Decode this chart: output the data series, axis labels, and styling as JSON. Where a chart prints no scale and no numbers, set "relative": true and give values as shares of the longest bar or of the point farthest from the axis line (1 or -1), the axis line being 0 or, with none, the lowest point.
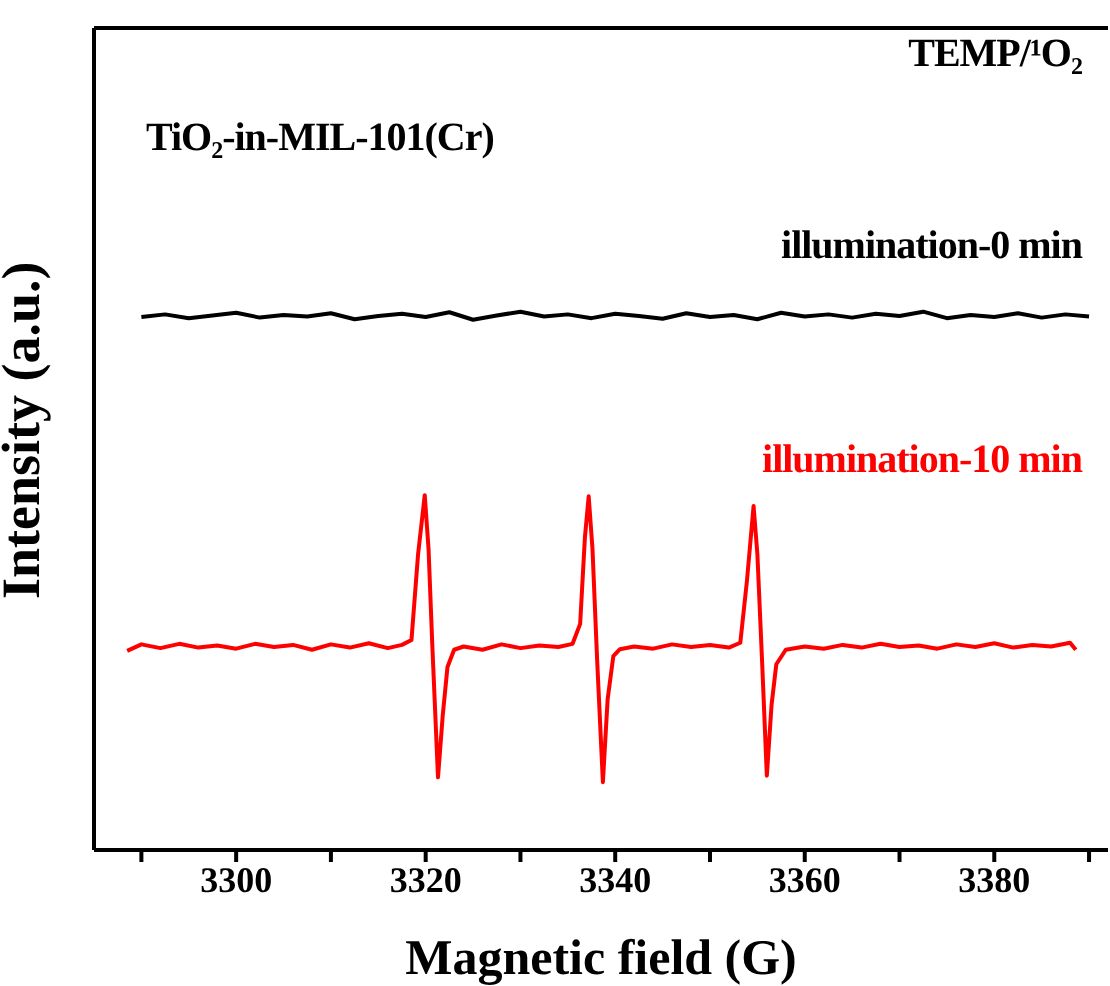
{
  "chart_data": {
    "type": "line",
    "relative": true,
    "xlabel": "Magnetic field (G)",
    "ylabel": "Intensity (a.u.)",
    "annotations": [
      "TEMP/¹O₂",
      "TiO₂-in-MIL-101(Cr)"
    ],
    "xlim": [
      3285,
      3392
    ],
    "xticks": [
      {
        "value": 3290,
        "label": null
      },
      3300,
      {
        "value": 3310,
        "label": null
      },
      3320,
      {
        "value": 3330,
        "label": null
      },
      3340,
      {
        "value": 3350,
        "label": null
      },
      3360,
      {
        "value": 3370,
        "label": null
      },
      3380,
      {
        "value": 3390,
        "label": null
      }
    ],
    "x": [
      3290,
      3292.5,
      3295,
      3297.5,
      3300,
      3302.5,
      3305,
      3307.5,
      3310,
      3312.5,
      3315,
      3317.5,
      3320,
      3322.5,
      3325,
      3327.5,
      3330,
      3332.5,
      3335,
      3337.5,
      3340,
      3342.5,
      3345,
      3347.5,
      3350,
      3352.5,
      3355,
      3357.5,
      3360,
      3362.5,
      3365,
      3367.5,
      3370,
      3372.5,
      3375,
      3377.5,
      3380,
      3382.5,
      3385,
      3387.5,
      3390
    ],
    "series": [
      {
        "name": "illumination-0 min",
        "color": "#000000",
        "values": [
          0.99,
          0.995,
          0.988,
          0.993,
          0.998,
          0.989,
          0.994,
          0.991,
          0.997,
          0.986,
          0.992,
          0.996,
          0.99,
          0.999,
          0.985,
          0.993,
          1.0,
          0.991,
          0.995,
          0.988,
          0.996,
          0.992,
          0.987,
          0.997,
          0.99,
          0.994,
          0.986,
          0.998,
          0.991,
          0.995,
          0.989,
          0.996,
          0.992,
          1.0,
          0.988,
          0.994,
          0.99,
          0.997,
          0.989,
          0.995,
          0.991
        ]
      },
      {
        "name": "illumination-10 min",
        "color": "#ff0000",
        "x": [
          3288.5,
          3290,
          3292,
          3294,
          3296,
          3298,
          3300,
          3302,
          3304,
          3306,
          3308,
          3310,
          3312,
          3314,
          3316,
          3317.5,
          3318.5,
          3319.2,
          3319.9,
          3320.3,
          3320.7,
          3321.3,
          3321.8,
          3322.3,
          3323,
          3324,
          3326,
          3328,
          3330,
          3332,
          3334,
          3335.5,
          3336.3,
          3336.8,
          3337.2,
          3337.6,
          3338.1,
          3338.7,
          3339.2,
          3339.8,
          3340.5,
          3342,
          3344,
          3346,
          3348,
          3350,
          3352,
          3353.2,
          3353.9,
          3354.6,
          3355.0,
          3355.5,
          3356.0,
          3356.5,
          3357,
          3358,
          3360,
          3362,
          3364,
          3366,
          3368,
          3370,
          3372,
          3374,
          3376,
          3378,
          3380,
          3382,
          3384,
          3386,
          3388,
          3388.6
        ],
        "values": [
          0.37,
          0.382,
          0.375,
          0.383,
          0.376,
          0.38,
          0.374,
          0.383,
          0.377,
          0.381,
          0.372,
          0.382,
          0.376,
          0.384,
          0.375,
          0.381,
          0.39,
          0.55,
          0.659,
          0.56,
          0.38,
          0.135,
          0.25,
          0.34,
          0.372,
          0.378,
          0.372,
          0.382,
          0.375,
          0.38,
          0.377,
          0.383,
          0.42,
          0.58,
          0.657,
          0.56,
          0.35,
          0.126,
          0.28,
          0.36,
          0.373,
          0.378,
          0.374,
          0.382,
          0.377,
          0.381,
          0.376,
          0.385,
          0.5,
          0.639,
          0.55,
          0.35,
          0.138,
          0.27,
          0.345,
          0.372,
          0.378,
          0.374,
          0.381,
          0.376,
          0.383,
          0.377,
          0.38,
          0.374,
          0.382,
          0.377,
          0.384,
          0.376,
          0.381,
          0.378,
          0.385,
          0.372
        ]
      }
    ]
  }
}
